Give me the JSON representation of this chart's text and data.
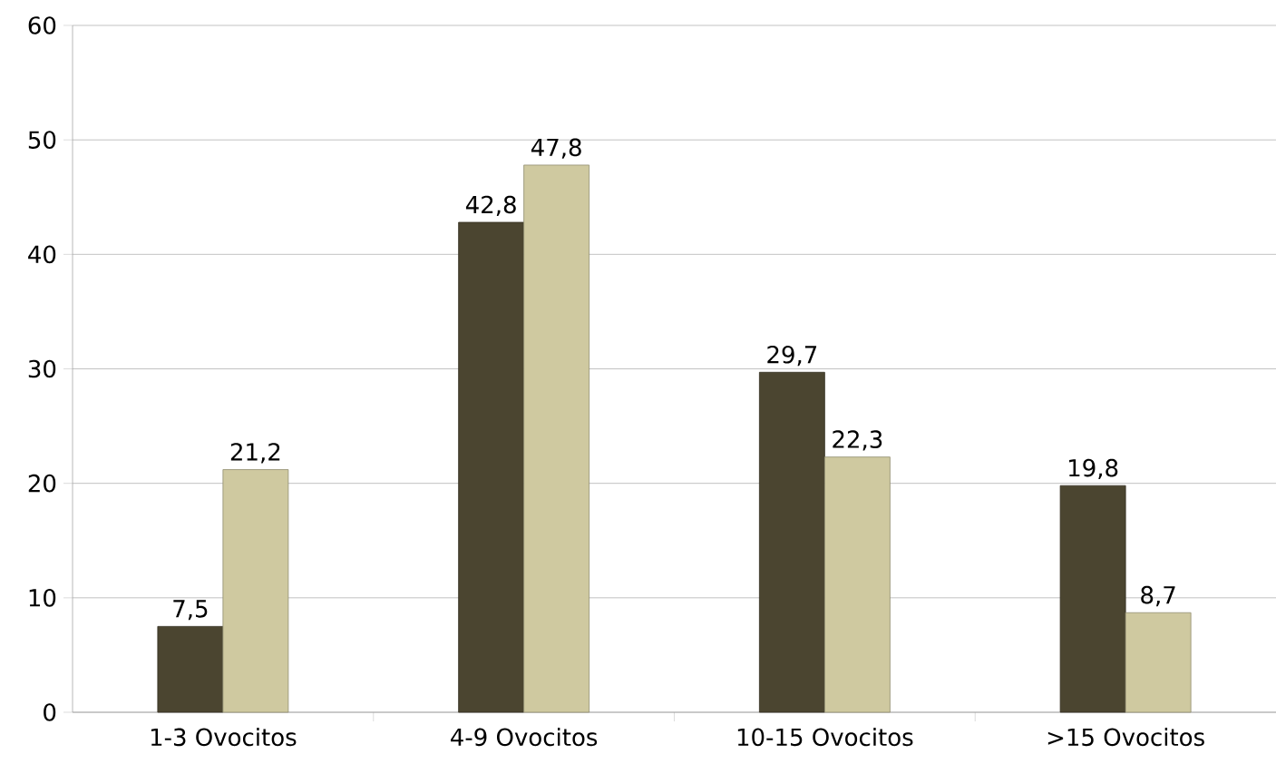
{
  "chart_data": {
    "type": "bar",
    "categories": [
      "1-3 Ovocitos",
      "4-9 Ovocitos",
      "10-15 Ovocitos",
      ">15 Ovocitos"
    ],
    "series": [
      {
        "color": "#4b4530",
        "values": [
          7.5,
          42.8,
          29.7,
          19.8
        ],
        "value_labels": [
          "7,5",
          "42,8",
          "29,7",
          "19,8"
        ]
      },
      {
        "color": "#cfc9a0",
        "values": [
          21.2,
          47.8,
          22.3,
          8.7
        ],
        "value_labels": [
          "21,2",
          "47,8",
          "22,3",
          "8,7"
        ]
      }
    ],
    "ylim": [
      0,
      60
    ],
    "yticks": [
      0,
      10,
      20,
      30,
      40,
      50,
      60
    ],
    "grid": "y"
  }
}
